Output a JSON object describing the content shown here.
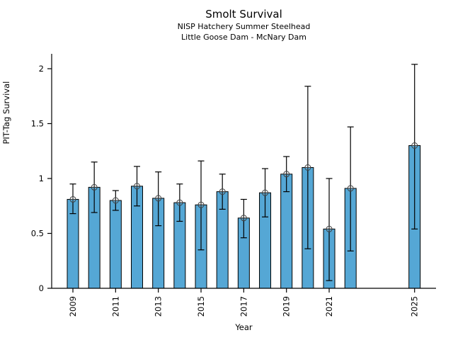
{
  "title": "Smolt Survival",
  "subtitle1": "NISP Hatchery Summer Steelhead",
  "subtitle2": "Little Goose Dam - McNary Dam",
  "chart_data": {
    "type": "bar",
    "title": "Smolt Survival",
    "subtitle": [
      "NISP Hatchery Summer Steelhead",
      "Little Goose Dam - McNary Dam"
    ],
    "xlabel": "Year",
    "ylabel": "PIT-Tag Survival",
    "ylim": [
      0,
      2.14
    ],
    "yticks": [
      0,
      0.5,
      1,
      1.5,
      2
    ],
    "ytick_labels": [
      "0",
      "0.5",
      "1",
      "1.5",
      "2"
    ],
    "xtick_years": [
      2009,
      2011,
      2013,
      2015,
      2017,
      2019,
      2021,
      2025
    ],
    "grid": false,
    "legend": "none",
    "bar_color": "#55a7d5",
    "bar_edge_color": "#000000",
    "error_color": "#000000",
    "marker": "open-circle-plus",
    "marker_color": "#3f3f3f",
    "points": [
      {
        "year": 2009,
        "value": 0.81,
        "lo": 0.68,
        "hi": 0.95
      },
      {
        "year": 2010,
        "value": 0.92,
        "lo": 0.69,
        "hi": 1.15
      },
      {
        "year": 2011,
        "value": 0.8,
        "lo": 0.71,
        "hi": 0.89
      },
      {
        "year": 2012,
        "value": 0.93,
        "lo": 0.75,
        "hi": 1.11
      },
      {
        "year": 2013,
        "value": 0.82,
        "lo": 0.57,
        "hi": 1.06
      },
      {
        "year": 2014,
        "value": 0.78,
        "lo": 0.61,
        "hi": 0.95
      },
      {
        "year": 2015,
        "value": 0.76,
        "lo": 0.35,
        "hi": 1.16
      },
      {
        "year": 2016,
        "value": 0.88,
        "lo": 0.72,
        "hi": 1.04
      },
      {
        "year": 2017,
        "value": 0.64,
        "lo": 0.46,
        "hi": 0.81
      },
      {
        "year": 2018,
        "value": 0.87,
        "lo": 0.65,
        "hi": 1.09
      },
      {
        "year": 2019,
        "value": 1.04,
        "lo": 0.88,
        "hi": 1.2
      },
      {
        "year": 2020,
        "value": 1.1,
        "lo": 0.36,
        "hi": 1.84
      },
      {
        "year": 2021,
        "value": 0.54,
        "lo": 0.07,
        "hi": 1.0
      },
      {
        "year": 2022,
        "value": 0.91,
        "lo": 0.34,
        "hi": 1.47
      },
      {
        "year": 2025,
        "value": 1.3,
        "lo": 0.54,
        "hi": 2.04
      }
    ]
  }
}
